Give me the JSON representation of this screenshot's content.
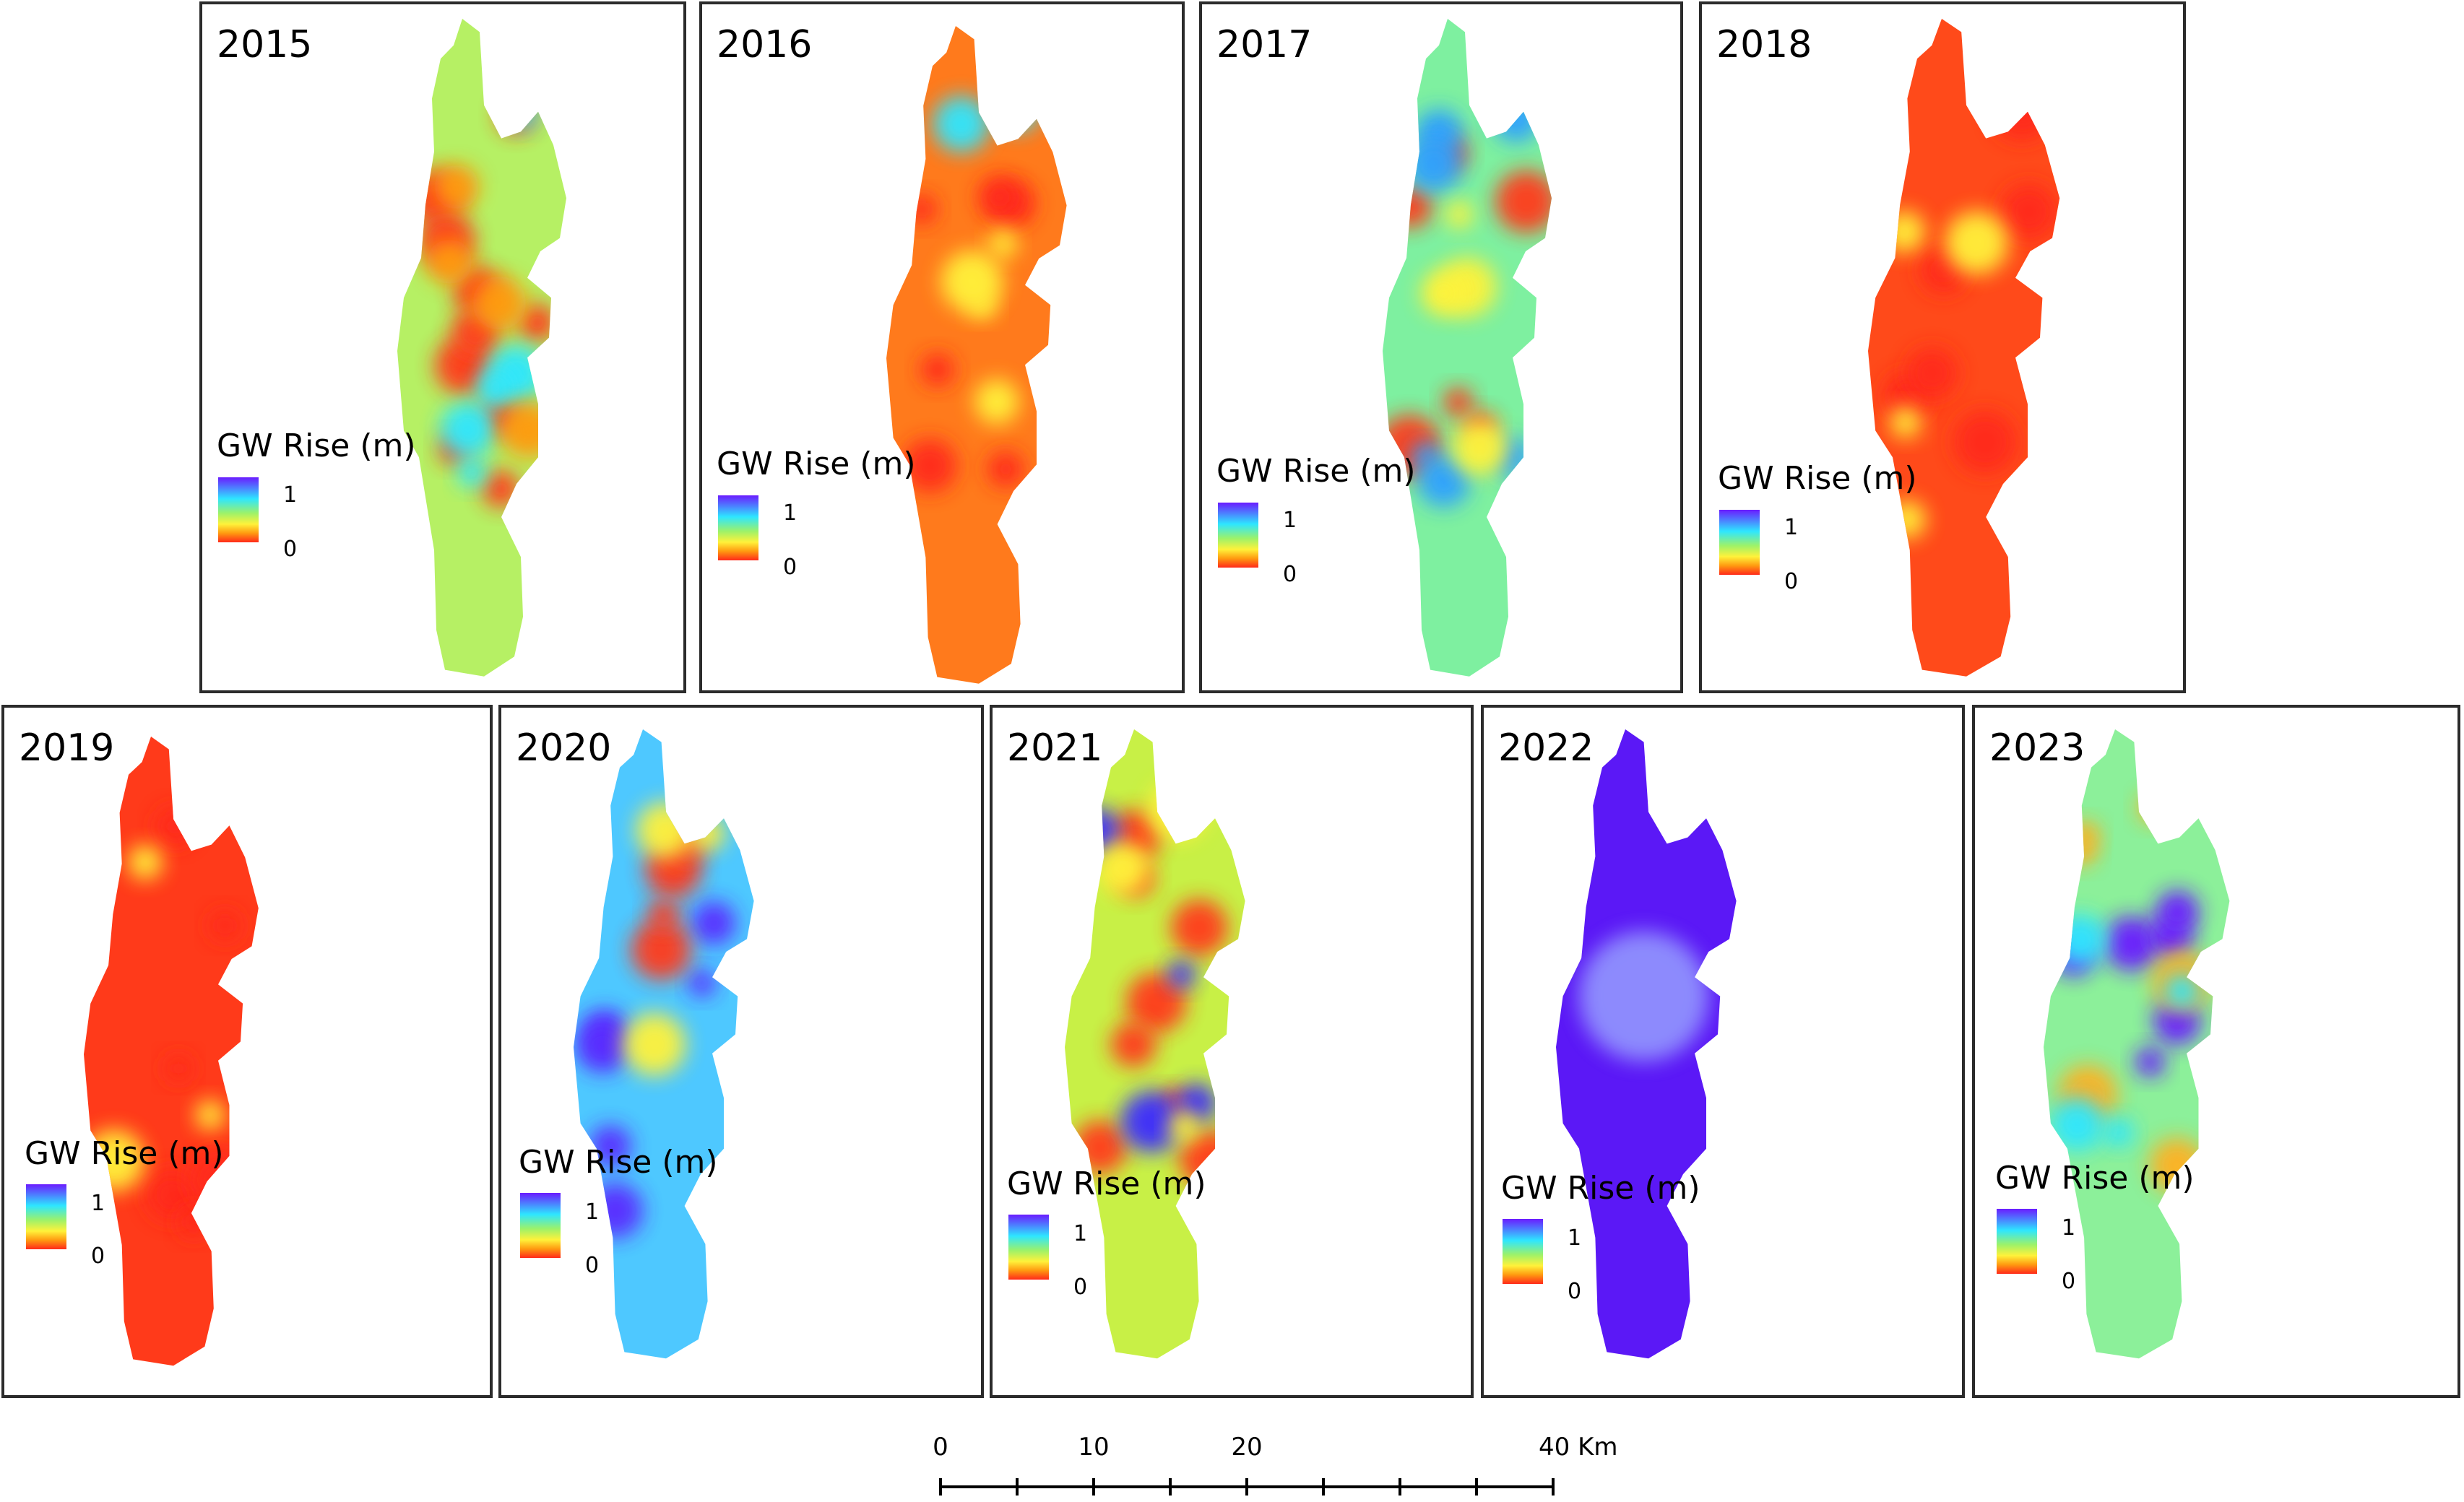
{
  "legend": {
    "title": "GW Rise (m)",
    "max_label": "1",
    "min_label": "0",
    "colors": [
      "#6a1cff",
      "#2ee6ff",
      "#9cf26a",
      "#fff23a",
      "#ff9a10",
      "#ff2a1a"
    ]
  },
  "panels": [
    {
      "year": "2015",
      "base": "#b6f064",
      "dots": [
        [
          "#ff3a1a",
          10
        ],
        [
          "#2ee6ff",
          5
        ],
        [
          "#ff9a10",
          4
        ]
      ]
    },
    {
      "year": "2016",
      "base": "#ff7a1c",
      "dots": [
        [
          "#ff2a1a",
          6
        ],
        [
          "#fff23a",
          4
        ],
        [
          "#2ee6ff",
          2
        ]
      ]
    },
    {
      "year": "2017",
      "base": "#7ef0a0",
      "dots": [
        [
          "#ff3a1a",
          6
        ],
        [
          "#2ea0ff",
          6
        ],
        [
          "#fff23a",
          4
        ]
      ]
    },
    {
      "year": "2018",
      "base": "#ff4a1a",
      "dots": [
        [
          "#ff2a1a",
          6
        ],
        [
          "#fff23a",
          4
        ]
      ]
    },
    {
      "year": "2019",
      "base": "#ff3a1a",
      "dots": [
        [
          "#ff2a1a",
          6
        ],
        [
          "#fff23a",
          3
        ]
      ]
    },
    {
      "year": "2020",
      "base": "#4ec8ff",
      "dots": [
        [
          "#5a2cff",
          6
        ],
        [
          "#ff3a1a",
          4
        ],
        [
          "#fff23a",
          3
        ]
      ]
    },
    {
      "year": "2021",
      "base": "#c8f046",
      "dots": [
        [
          "#ff3a1a",
          8
        ],
        [
          "#3a2cff",
          4
        ],
        [
          "#fff23a",
          3
        ]
      ]
    },
    {
      "year": "2022",
      "base": "#5b18f6",
      "dots": []
    },
    {
      "year": "2023",
      "base": "#8cf09a",
      "dots": [
        [
          "#6a1cff",
          6
        ],
        [
          "#ffb020",
          6
        ],
        [
          "#2ee6ff",
          4
        ]
      ]
    }
  ],
  "scale_bar": {
    "labels": [
      "0",
      "10",
      "20",
      "40 Km"
    ],
    "ticks": [
      0,
      5,
      10,
      15,
      20,
      25,
      30,
      35,
      40
    ]
  }
}
